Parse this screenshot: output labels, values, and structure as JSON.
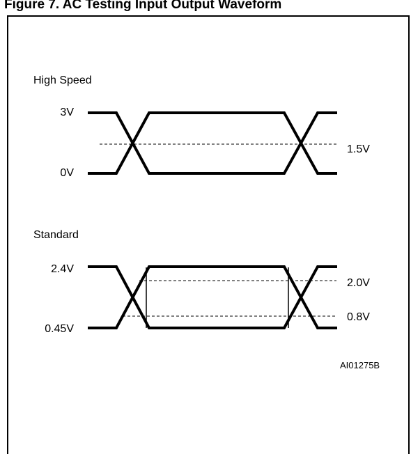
{
  "title": "Figure 7. AC Testing Input Output Waveform",
  "sections": {
    "high_speed": {
      "heading": "High Speed",
      "high_level": "3V",
      "low_level": "0V",
      "reference": "1.5V"
    },
    "standard": {
      "heading": "Standard",
      "high_level": "2.4V",
      "low_level": "0.45V",
      "upper_threshold": "2.0V",
      "lower_threshold": "0.8V"
    }
  },
  "figure_code": "AI01275B"
}
